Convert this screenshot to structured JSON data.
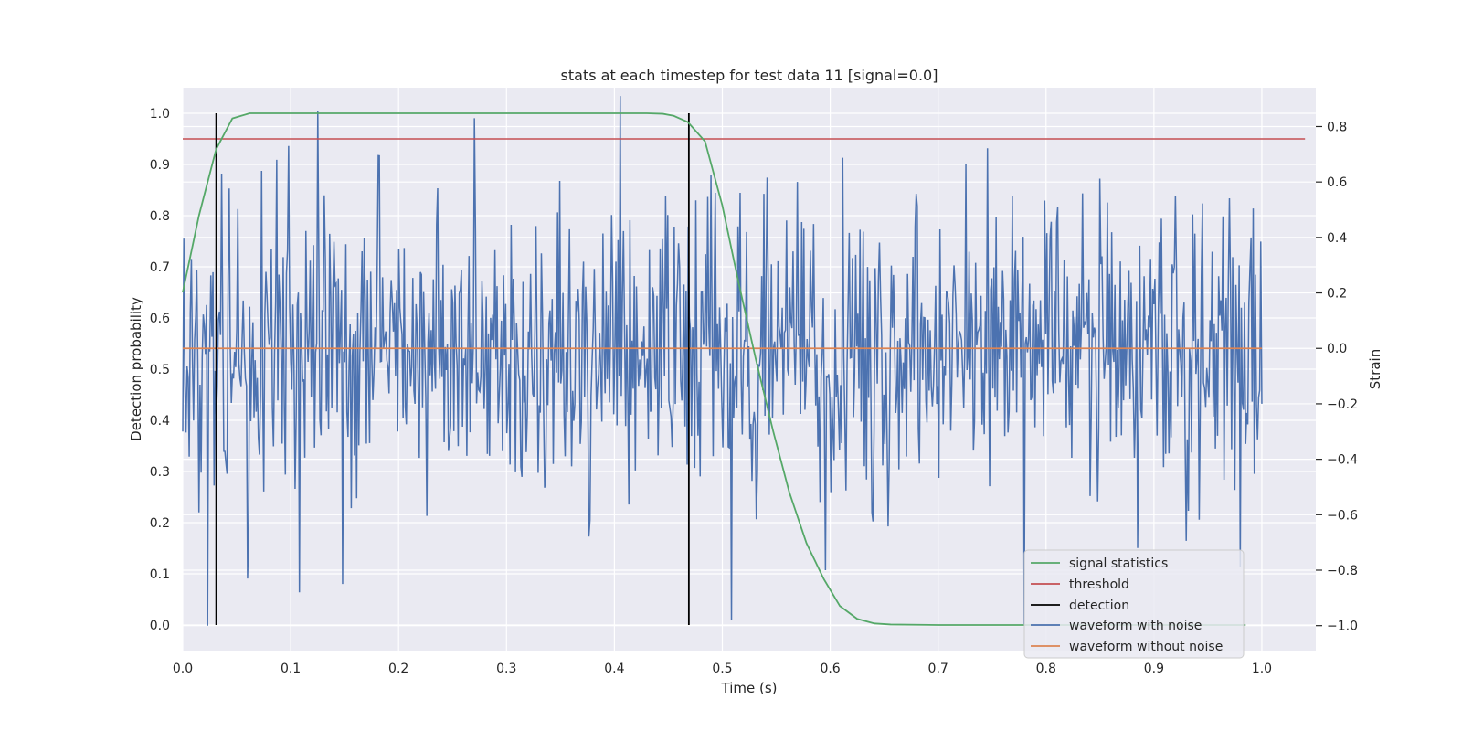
{
  "chart_data": {
    "type": "line",
    "title": "stats at each timestep for test data 11 [signal=0.0]",
    "xlabel": "Time (s)",
    "ylabel": "Detection probability",
    "y2label": "Strain",
    "xlim": [
      0.0,
      1.05
    ],
    "ylim": [
      -0.05,
      1.05
    ],
    "y2lim": [
      -1.09,
      0.94
    ],
    "xticks": [
      "0.0",
      "0.1",
      "0.2",
      "0.3",
      "0.4",
      "0.5",
      "0.6",
      "0.7",
      "0.8",
      "0.9",
      "1.0"
    ],
    "xtick_values": [
      0.0,
      0.1,
      0.2,
      0.3,
      0.4,
      0.5,
      0.6,
      0.7,
      0.8,
      0.9,
      1.0
    ],
    "yticks": [
      "0.0",
      "0.1",
      "0.2",
      "0.3",
      "0.4",
      "0.5",
      "0.6",
      "0.7",
      "0.8",
      "0.9",
      "1.0"
    ],
    "ytick_values": [
      0.0,
      0.1,
      0.2,
      0.3,
      0.4,
      0.5,
      0.6,
      0.7,
      0.8,
      0.9,
      1.0
    ],
    "y2ticks": [
      "−1.0",
      "−0.8",
      "−0.6",
      "−0.4",
      "−0.2",
      "0.0",
      "0.2",
      "0.4",
      "0.6",
      "0.8"
    ],
    "y2tick_values": [
      -1.0,
      -0.8,
      -0.6,
      -0.4,
      -0.2,
      0.0,
      0.2,
      0.4,
      0.6,
      0.8
    ],
    "grid": true,
    "legend_position": "bottom-right",
    "series": [
      {
        "name": "signal statistics",
        "axis": "left",
        "color": "#55a868",
        "x": [
          0.0,
          0.015,
          0.031,
          0.046,
          0.062,
          0.078,
          0.1,
          0.2,
          0.3,
          0.4,
          0.43,
          0.445,
          0.455,
          0.468,
          0.484,
          0.5,
          0.515,
          0.531,
          0.547,
          0.562,
          0.578,
          0.594,
          0.609,
          0.625,
          0.641,
          0.656,
          0.7,
          0.8,
          0.9,
          0.985
        ],
        "values": [
          0.65,
          0.8,
          0.93,
          0.99,
          1.0,
          1.0,
          1.0,
          1.0,
          1.0,
          1.0,
          1.0,
          0.999,
          0.995,
          0.983,
          0.945,
          0.82,
          0.67,
          0.52,
          0.38,
          0.26,
          0.16,
          0.09,
          0.037,
          0.012,
          0.003,
          0.001,
          0.0,
          0.0,
          0.0,
          0.0
        ]
      },
      {
        "name": "threshold",
        "axis": "left",
        "color": "#c44e52",
        "x": [
          0.0,
          1.04
        ],
        "values": [
          0.95,
          0.95
        ]
      },
      {
        "name": "detection",
        "axis": "left",
        "color": "#000000",
        "segments": [
          {
            "x": 0.031,
            "y0": 0.0,
            "y1": 1.0
          },
          {
            "x": 0.469,
            "y0": 0.0,
            "y1": 1.0
          }
        ]
      },
      {
        "name": "waveform with noise",
        "axis": "right",
        "color": "#4c72b0",
        "x_range": [
          0.0,
          1.0
        ],
        "n_points": 1000,
        "noise_std": 0.27,
        "values_excerpt": {
          "x": [
            0.0,
            0.023,
            0.06,
            0.073,
            0.087,
            0.098,
            0.108,
            0.148,
            0.27,
            0.405,
            0.41,
            0.57,
            0.596,
            0.885,
            0.98,
            0.99,
            1.0
          ],
          "y": [
            -0.3,
            -1.0,
            -0.83,
            0.64,
            0.68,
            0.73,
            -0.88,
            -0.85,
            0.83,
            0.91,
            -0.28,
            0.6,
            -0.8,
            -0.72,
            -0.79,
            0.4,
            -0.2
          ]
        }
      },
      {
        "name": "waveform without noise",
        "axis": "right",
        "color": "#dd8452",
        "x": [
          0.0,
          1.0
        ],
        "values": [
          0.0,
          0.0
        ]
      }
    ]
  }
}
